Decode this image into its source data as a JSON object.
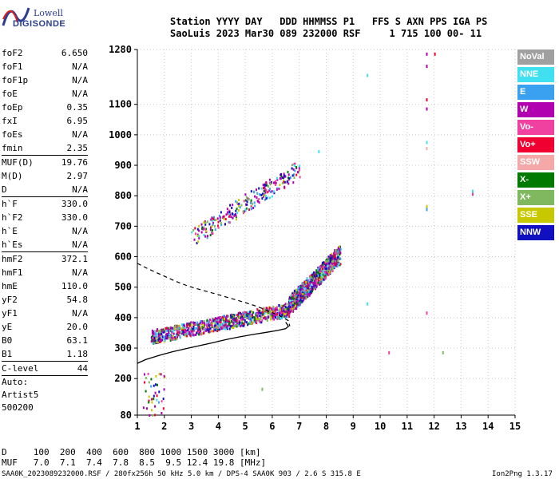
{
  "header": {
    "logo_top": "Lowell",
    "logo_bottom": "DIGISONDE",
    "line1": "Station YYYY DAY   DDD HHMMSS P1   FFS S AXN PPS IGA PS",
    "line2": "SaoLuis 2023 Mar30 089 232000 RSF     1 715 100 00- 11"
  },
  "params": [
    {
      "name": "foF2",
      "value": "6.650"
    },
    {
      "name": "foF1",
      "value": "N/A"
    },
    {
      "name": "foF1p",
      "value": "N/A"
    },
    {
      "name": "foE",
      "value": "N/A"
    },
    {
      "name": "foEp",
      "value": "0.35"
    },
    {
      "name": "fxI",
      "value": "6.95"
    },
    {
      "name": "foEs",
      "value": "N/A"
    },
    {
      "name": "fmin",
      "value": "2.35"
    },
    {
      "sep": true
    },
    {
      "name": "MUF(D)",
      "value": "19.76"
    },
    {
      "name": "M(D)",
      "value": "2.97"
    },
    {
      "name": "D",
      "value": "N/A"
    },
    {
      "sep": true
    },
    {
      "name": "h`F",
      "value": "330.0"
    },
    {
      "name": "h`F2",
      "value": "330.0"
    },
    {
      "name": "h`E",
      "value": "N/A"
    },
    {
      "name": "h`Es",
      "value": "N/A"
    },
    {
      "sep": true
    },
    {
      "name": "hmF2",
      "value": "372.1"
    },
    {
      "name": "hmF1",
      "value": "N/A"
    },
    {
      "name": "hmE",
      "value": "110.0"
    },
    {
      "name": "yF2",
      "value": "54.8"
    },
    {
      "name": "yF1",
      "value": "N/A"
    },
    {
      "name": "yE",
      "value": "20.0"
    },
    {
      "name": "B0",
      "value": "63.1"
    },
    {
      "name": "B1",
      "value": "1.18"
    },
    {
      "sep": true
    },
    {
      "name": "C-level",
      "value": "44"
    },
    {
      "sep": true
    }
  ],
  "auto": {
    "label": "Auto:",
    "artist": "Artist5",
    "code": "500200"
  },
  "legend": [
    {
      "label": "NoVal",
      "color": "#a0a0a0"
    },
    {
      "label": "NNE",
      "color": "#40e0f0"
    },
    {
      "label": "E",
      "color": "#3aa0f0"
    },
    {
      "label": "W",
      "color": "#b000b0"
    },
    {
      "label": "Vo-",
      "color": "#f040a0"
    },
    {
      "label": "Vo+",
      "color": "#f00030"
    },
    {
      "label": "SSW",
      "color": "#f4a8a8"
    },
    {
      "label": "X-",
      "color": "#007a00"
    },
    {
      "label": "X+",
      "color": "#80b860"
    },
    {
      "label": "SSE",
      "color": "#c8c800"
    },
    {
      "label": "NNW",
      "color": "#1010c0"
    }
  ],
  "footer": {
    "d_row": "D     100  200  400  600  800 1000 1500 3000 [km]",
    "muf_row": "MUF   7.0  7.1  7.4  7.8  8.5  9.5 12.4 19.8 [MHz]",
    "file_info": "SAA0K_2023089232000.RSF / 280fx256h 50 kHz 5.0 km / DPS-4 SAA0K 903 / 2.6 S 315.8 E",
    "version": "Ion2Png 1.3.17"
  },
  "chart_data": {
    "type": "scatter",
    "x_ticks": [
      1,
      2,
      3,
      4,
      5,
      6,
      7,
      8,
      9,
      10,
      11,
      12,
      13,
      14,
      15
    ],
    "y_ticks": [
      80,
      200,
      300,
      400,
      500,
      600,
      700,
      800,
      900,
      1000,
      1100,
      1280
    ],
    "xlim": [
      1,
      15
    ],
    "ylim": [
      80,
      1280
    ],
    "grid": true,
    "profile_solid": {
      "x": [
        1.0,
        1.3,
        1.8,
        2.3,
        2.8,
        3.3,
        3.8,
        4.3,
        4.8,
        5.3,
        5.8,
        6.2,
        6.5,
        6.6,
        6.5
      ],
      "y": [
        250,
        262,
        276,
        288,
        298,
        308,
        318,
        328,
        337,
        345,
        352,
        358,
        364,
        372,
        385
      ]
    },
    "profile_dashed": {
      "x": [
        1.0,
        1.4,
        1.9,
        2.4,
        2.9,
        3.4,
        3.9,
        4.4,
        4.9,
        5.4,
        5.9,
        6.3,
        6.6,
        6.65
      ],
      "y": [
        578,
        560,
        540,
        520,
        503,
        490,
        478,
        465,
        452,
        438,
        420,
        405,
        390,
        372
      ]
    },
    "traces": [
      {
        "name": "o-trace F",
        "x": [
          1.5,
          6.6
        ],
        "y": [
          330,
          420
        ],
        "spread": 45
      },
      {
        "name": "o-trace F high",
        "x": [
          6.6,
          8.5
        ],
        "y": [
          430,
          600
        ],
        "spread": 60
      },
      {
        "name": "2nd hop",
        "x": [
          3.0,
          7.0
        ],
        "y": [
          650,
          880
        ],
        "spread": 60
      }
    ]
  }
}
